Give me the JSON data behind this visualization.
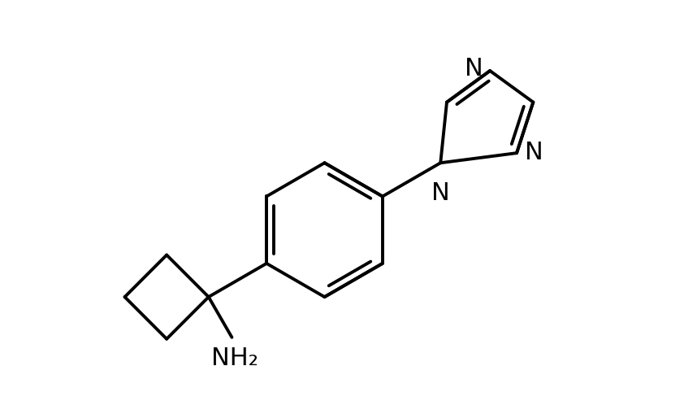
{
  "background_color": "#ffffff",
  "line_color": "#000000",
  "line_width": 2.8,
  "font_size": 22,
  "figsize": [
    8.42,
    5.1
  ],
  "dpi": 100,
  "xlim": [
    -1,
    10
  ],
  "ylim": [
    0,
    7
  ]
}
